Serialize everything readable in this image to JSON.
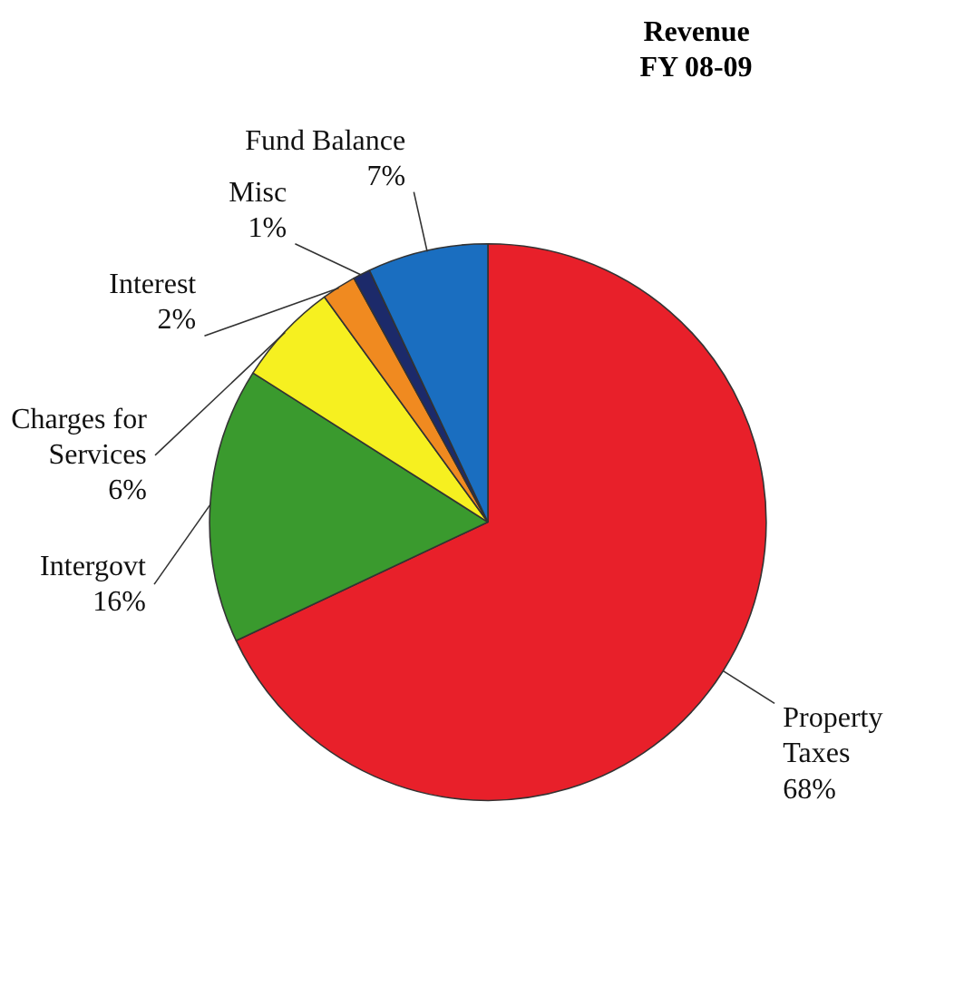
{
  "chart_data": {
    "type": "pie",
    "title": "Revenue\nFY 08-09",
    "categories": [
      "Property Taxes",
      "Intergovt",
      "Charges for Services",
      "Interest",
      "Misc",
      "Fund Balance"
    ],
    "values": [
      68,
      16,
      6,
      2,
      1,
      7
    ],
    "colors": [
      "#e8202a",
      "#3a9a2e",
      "#f6f020",
      "#f08a20",
      "#1c2a6a",
      "#1a6ec0"
    ],
    "value_labels": [
      "68%",
      "16%",
      "6%",
      "2%",
      "1%",
      "7%"
    ]
  }
}
